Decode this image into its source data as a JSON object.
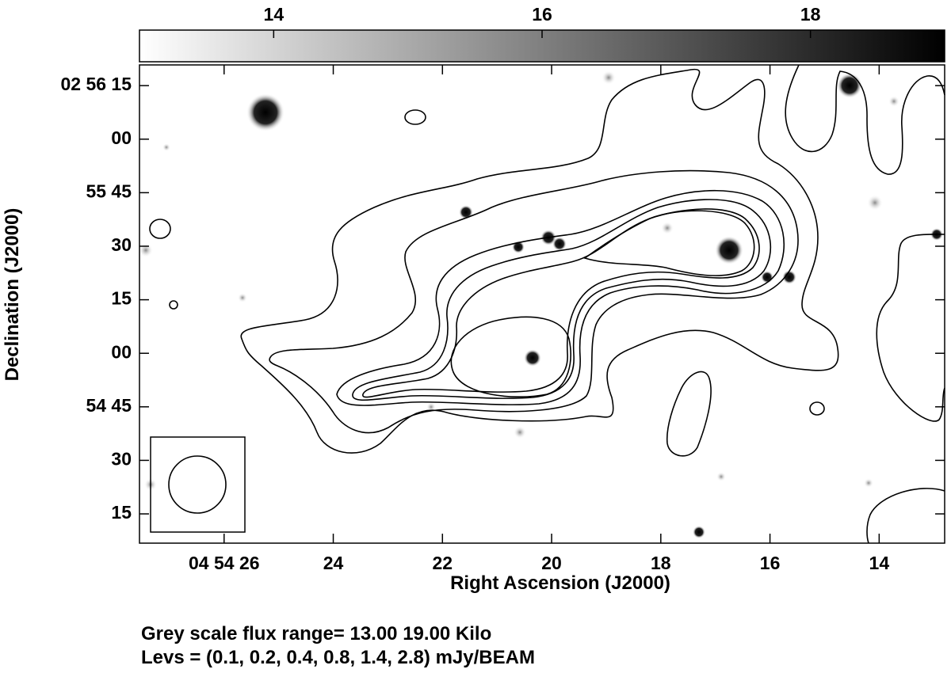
{
  "chart_data": {
    "type": "contour",
    "xlabel": "Right Ascension (J2000)",
    "ylabel": "Declination (J2000)",
    "xlim": [
      27.55,
      12.8
    ],
    "xticks": [
      {
        "value": 26,
        "label": "04 54 26"
      },
      24,
      22,
      20,
      18,
      16,
      14
    ],
    "ylim": [
      6.8,
      140.8
    ],
    "yticks": [
      {
        "value": 135,
        "label": "02 56 15"
      },
      {
        "value": 120,
        "label": "00"
      },
      {
        "value": 105,
        "label": "55 45"
      },
      {
        "value": 90,
        "label": "30"
      },
      {
        "value": 75,
        "label": "15"
      },
      {
        "value": 60,
        "label": "00"
      },
      {
        "value": 45,
        "label": "54 45"
      },
      30,
      15
    ],
    "colorbar": {
      "range": [
        13,
        19
      ],
      "ticks": [
        14,
        16,
        18
      ]
    },
    "footnotes": [
      "Grey scale flux range= 13.00 19.00 Kilo",
      "Levs = (0.1, 0.2, 0.4, 0.8, 1.4, 2.8) mJy/BEAM"
    ]
  }
}
